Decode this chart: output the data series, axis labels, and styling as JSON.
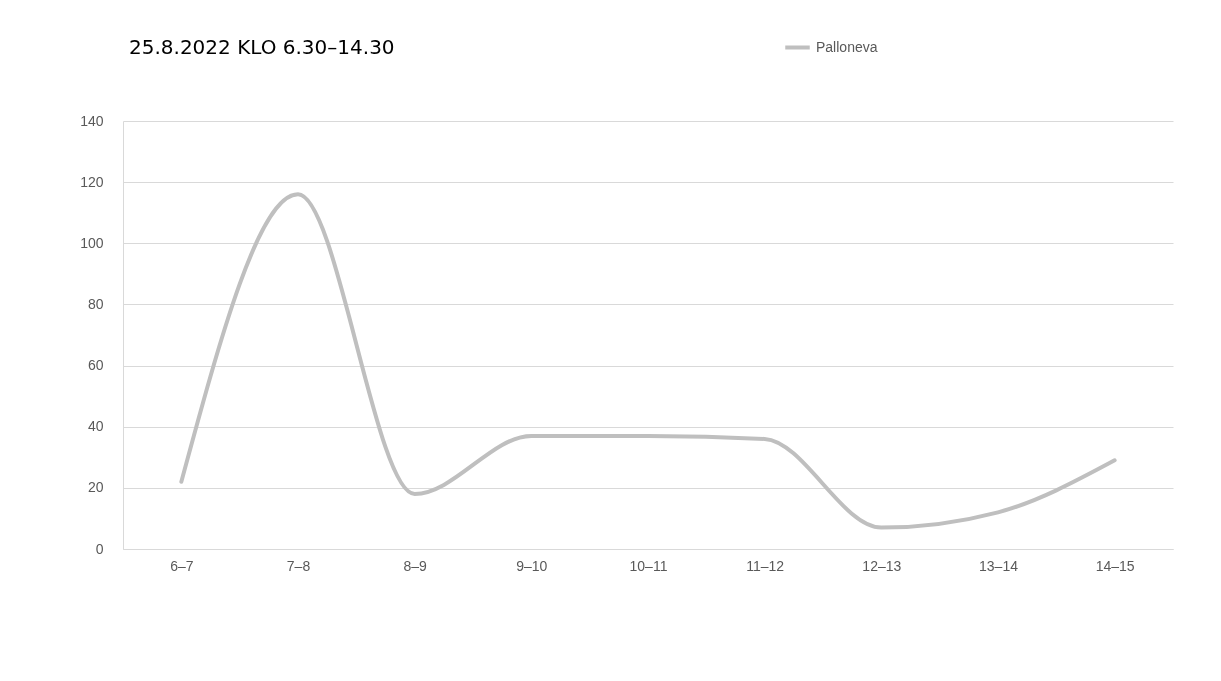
{
  "chart_data": {
    "type": "line",
    "title": "25.8.2022 KLO 6.30–14.30",
    "categories": [
      "6–7",
      "7–8",
      "8–9",
      "9–10",
      "10–11",
      "11–12",
      "12–13",
      "13–14",
      "14–15"
    ],
    "series": [
      {
        "name": "Palloneva",
        "color": "#bfbfbf",
        "values": [
          22,
          116,
          18,
          37,
          37,
          36,
          7,
          12,
          29
        ]
      }
    ],
    "ylim": [
      0,
      140
    ],
    "yticks": [
      0,
      20,
      40,
      60,
      80,
      100,
      120,
      140
    ],
    "grid": "y",
    "legend": "top right",
    "line_style": "solid",
    "marker": "none"
  }
}
